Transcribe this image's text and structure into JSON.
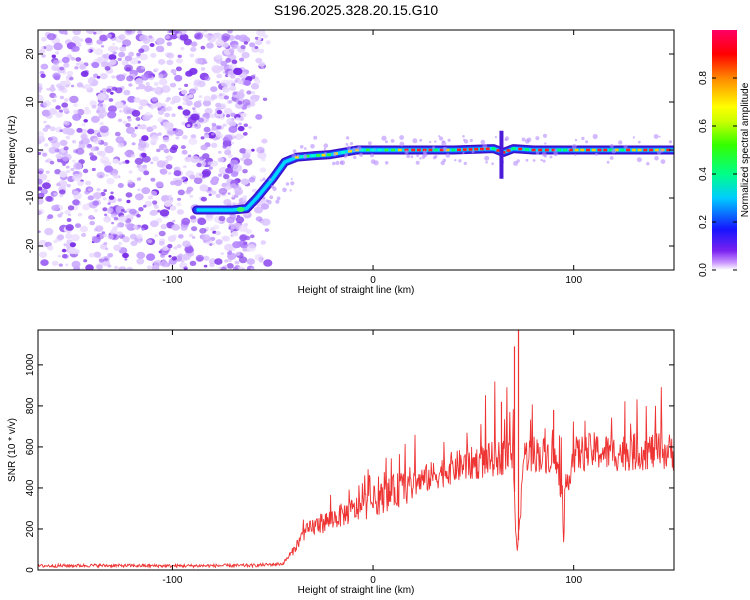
{
  "title": "S196.2025.328.20.15.G10",
  "chart_data": [
    {
      "type": "heatmap",
      "xlabel": "Height of straight line (km)",
      "ylabel": "Frequency (Hz)",
      "xlim": [
        -167,
        150
      ],
      "ylim": [
        -25,
        25
      ],
      "xticks": [
        {
          "value": -100,
          "label": "-100"
        },
        {
          "value": 0,
          "label": "0"
        },
        {
          "value": 100,
          "label": "100"
        }
      ],
      "yticks": [
        {
          "value": -20,
          "label": "-20"
        },
        {
          "value": -10,
          "label": "-10"
        },
        {
          "value": 0,
          "label": "0"
        },
        {
          "value": 10,
          "label": "10"
        },
        {
          "value": 20,
          "label": "20"
        }
      ],
      "noise_region_x": [
        -167,
        -52
      ],
      "ridge": {
        "x": [
          -88,
          -70,
          -63,
          -58,
          -50,
          -44,
          -38,
          -30,
          -22,
          -15,
          -8,
          0,
          10,
          20,
          40,
          60,
          65,
          70,
          80,
          90,
          110,
          130,
          150
        ],
        "y": [
          -12.5,
          -12.5,
          -12.2,
          -10,
          -6,
          -2.5,
          -1.5,
          -1.2,
          -1,
          -0.5,
          0,
          0,
          0,
          0,
          0,
          0.3,
          -0.5,
          0.3,
          0,
          0,
          0,
          0,
          0
        ]
      },
      "colorbar": {
        "label": "Normalized spectral amplitude",
        "range": [
          0,
          1
        ],
        "ticks": [
          {
            "value": 0,
            "label": "0.0"
          },
          {
            "value": 0.2,
            "label": "0.2"
          },
          {
            "value": 0.4,
            "label": "0.4"
          },
          {
            "value": 0.6,
            "label": "0.6"
          },
          {
            "value": 0.8,
            "label": "0.8"
          }
        ]
      }
    },
    {
      "type": "line",
      "xlabel": "Height of straight line (km)",
      "ylabel": "SNR (10 * v/v)",
      "xlim": [
        -167,
        150
      ],
      "ylim": [
        0,
        1170
      ],
      "xticks": [
        {
          "value": -100,
          "label": "-100"
        },
        {
          "value": 0,
          "label": "0"
        },
        {
          "value": 100,
          "label": "100"
        }
      ],
      "yticks": [
        {
          "value": 0,
          "label": "0"
        },
        {
          "value": 200,
          "label": "200"
        },
        {
          "value": 400,
          "label": "400"
        },
        {
          "value": 600,
          "label": "600"
        },
        {
          "value": 800,
          "label": "800"
        },
        {
          "value": 1000,
          "label": "1000"
        }
      ],
      "series": [
        {
          "name": "SNR",
          "color": "#ee3333",
          "x": [
            -167,
            -140,
            -100,
            -60,
            -45,
            -40,
            -35,
            -30,
            -20,
            -10,
            0,
            10,
            20,
            30,
            40,
            50,
            60,
            65,
            70,
            71,
            72,
            73,
            75,
            80,
            85,
            90,
            94,
            95,
            96,
            100,
            110,
            120,
            130,
            140,
            150
          ],
          "y": [
            20,
            22,
            20,
            22,
            30,
            90,
            170,
            210,
            250,
            290,
            330,
            380,
            420,
            460,
            500,
            520,
            540,
            550,
            560,
            200,
            90,
            200,
            560,
            570,
            560,
            560,
            400,
            100,
            400,
            560,
            580,
            570,
            575,
            580,
            575
          ]
        }
      ],
      "spikes": [
        {
          "x": 72.5,
          "y": 1170
        },
        {
          "x": 70.5,
          "y": 1090
        },
        {
          "x": 64,
          "y": 820
        },
        {
          "x": 90,
          "y": 780
        }
      ]
    }
  ]
}
